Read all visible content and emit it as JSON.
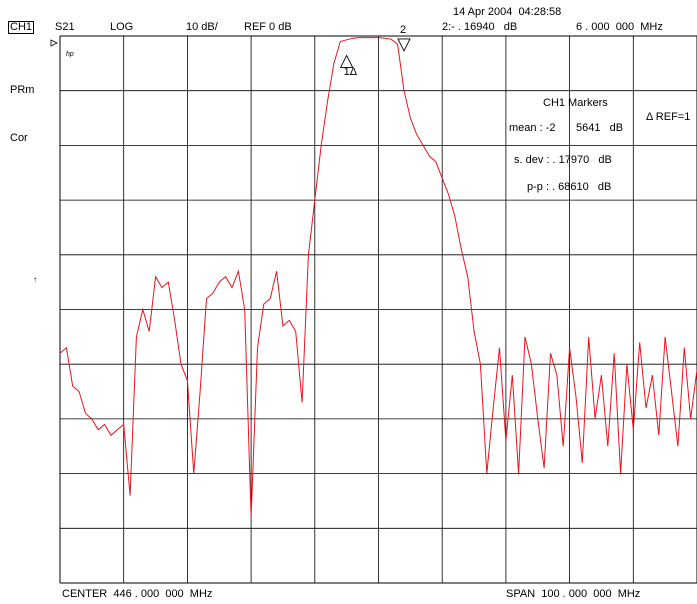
{
  "header": {
    "timestamp": "14 Apr 2004  04:28:58",
    "channel": "CH1",
    "param": "S21",
    "format": "LOG",
    "scale": "10 dB/",
    "ref": "REF 0 dB",
    "marker_readout": "2:- . 16940   dB",
    "marker_freq": "6 . 000  000  MHz"
  },
  "left": {
    "hp": "hp",
    "prm": "PRm",
    "cor": "Cor",
    "ref_arrow": "↑"
  },
  "markers_box": {
    "title": "CH1 Markers",
    "ref_note": "Δ REF=1",
    "mean_label": "mean : -2",
    "mean_value": "5641   dB",
    "sdev_label": "s. dev : . 17970   dB",
    "pp_label": "p-p : . 68610   dB"
  },
  "marker_labels": {
    "m1": "1Δ",
    "m2": "2"
  },
  "footer": {
    "center": "CENTER  446 . 000  000  MHz",
    "span": "SPAN  100 . 000  000  MHz"
  },
  "colors": {
    "trace": "#e8141c",
    "grid": "#000000"
  },
  "chart_data": {
    "type": "line",
    "title": "",
    "xlabel": "",
    "ylabel": "",
    "x_range_mhz": [
      396,
      496
    ],
    "ylim": [
      -100,
      0
    ],
    "grid": true,
    "series": [
      {
        "x": [
          396,
          397,
          398,
          399,
          400,
          401,
          402,
          403,
          404,
          405,
          406,
          407,
          408,
          409,
          410,
          411,
          412,
          413,
          414,
          415,
          416,
          417,
          418,
          419,
          420,
          421,
          422,
          423,
          424,
          425,
          426,
          427,
          428,
          429,
          430,
          431,
          432,
          433,
          434,
          435,
          436,
          437,
          438,
          439,
          440,
          441,
          442,
          443,
          444,
          445,
          446,
          447,
          448,
          449,
          450,
          451,
          452,
          453,
          454,
          455,
          456,
          457,
          458,
          459,
          460,
          461,
          462,
          463,
          464,
          465,
          466,
          467,
          468,
          469,
          470,
          471,
          472,
          473,
          474,
          475,
          476,
          477,
          478,
          479,
          480,
          481,
          482,
          483,
          484,
          485,
          486,
          487,
          488,
          489,
          490,
          491,
          492,
          493,
          494,
          495,
          496
        ],
        "y": [
          -58,
          -57,
          -64,
          -65,
          -69,
          -70,
          -72,
          -71,
          -73,
          -72,
          -71,
          -84,
          -55,
          -50,
          -54,
          -44,
          -46,
          -45,
          -52,
          -60,
          -63,
          -80,
          -65,
          -48,
          -47,
          -45,
          -44,
          -46,
          -43,
          -50,
          -88,
          -57,
          -49,
          -48,
          -43,
          -53,
          -52,
          -54,
          -67,
          -40,
          -30,
          -20,
          -12,
          -5,
          -1,
          -0.7,
          -0.4,
          -0.3,
          -0.3,
          -0.3,
          -0.3,
          -0.4,
          -0.6,
          -1.5,
          -10,
          -15,
          -18,
          -20,
          -22,
          -23,
          -26,
          -29,
          -33,
          -39,
          -44,
          -54,
          -60,
          -80,
          -68,
          -57,
          -74,
          -62,
          -80,
          -55,
          -60,
          -70,
          -79,
          -58,
          -62,
          -75,
          -57,
          -66,
          -78,
          -55,
          -70,
          -62,
          -75,
          -58,
          -80,
          -60,
          -72,
          -56,
          -68,
          -62,
          -73,
          -55,
          -65,
          -75,
          -57,
          -70,
          -61
        ]
      }
    ],
    "markers": [
      {
        "label": "1Δ",
        "x": 441,
        "y": -1
      },
      {
        "label": "2",
        "x": 450,
        "y": -0.17
      }
    ]
  }
}
